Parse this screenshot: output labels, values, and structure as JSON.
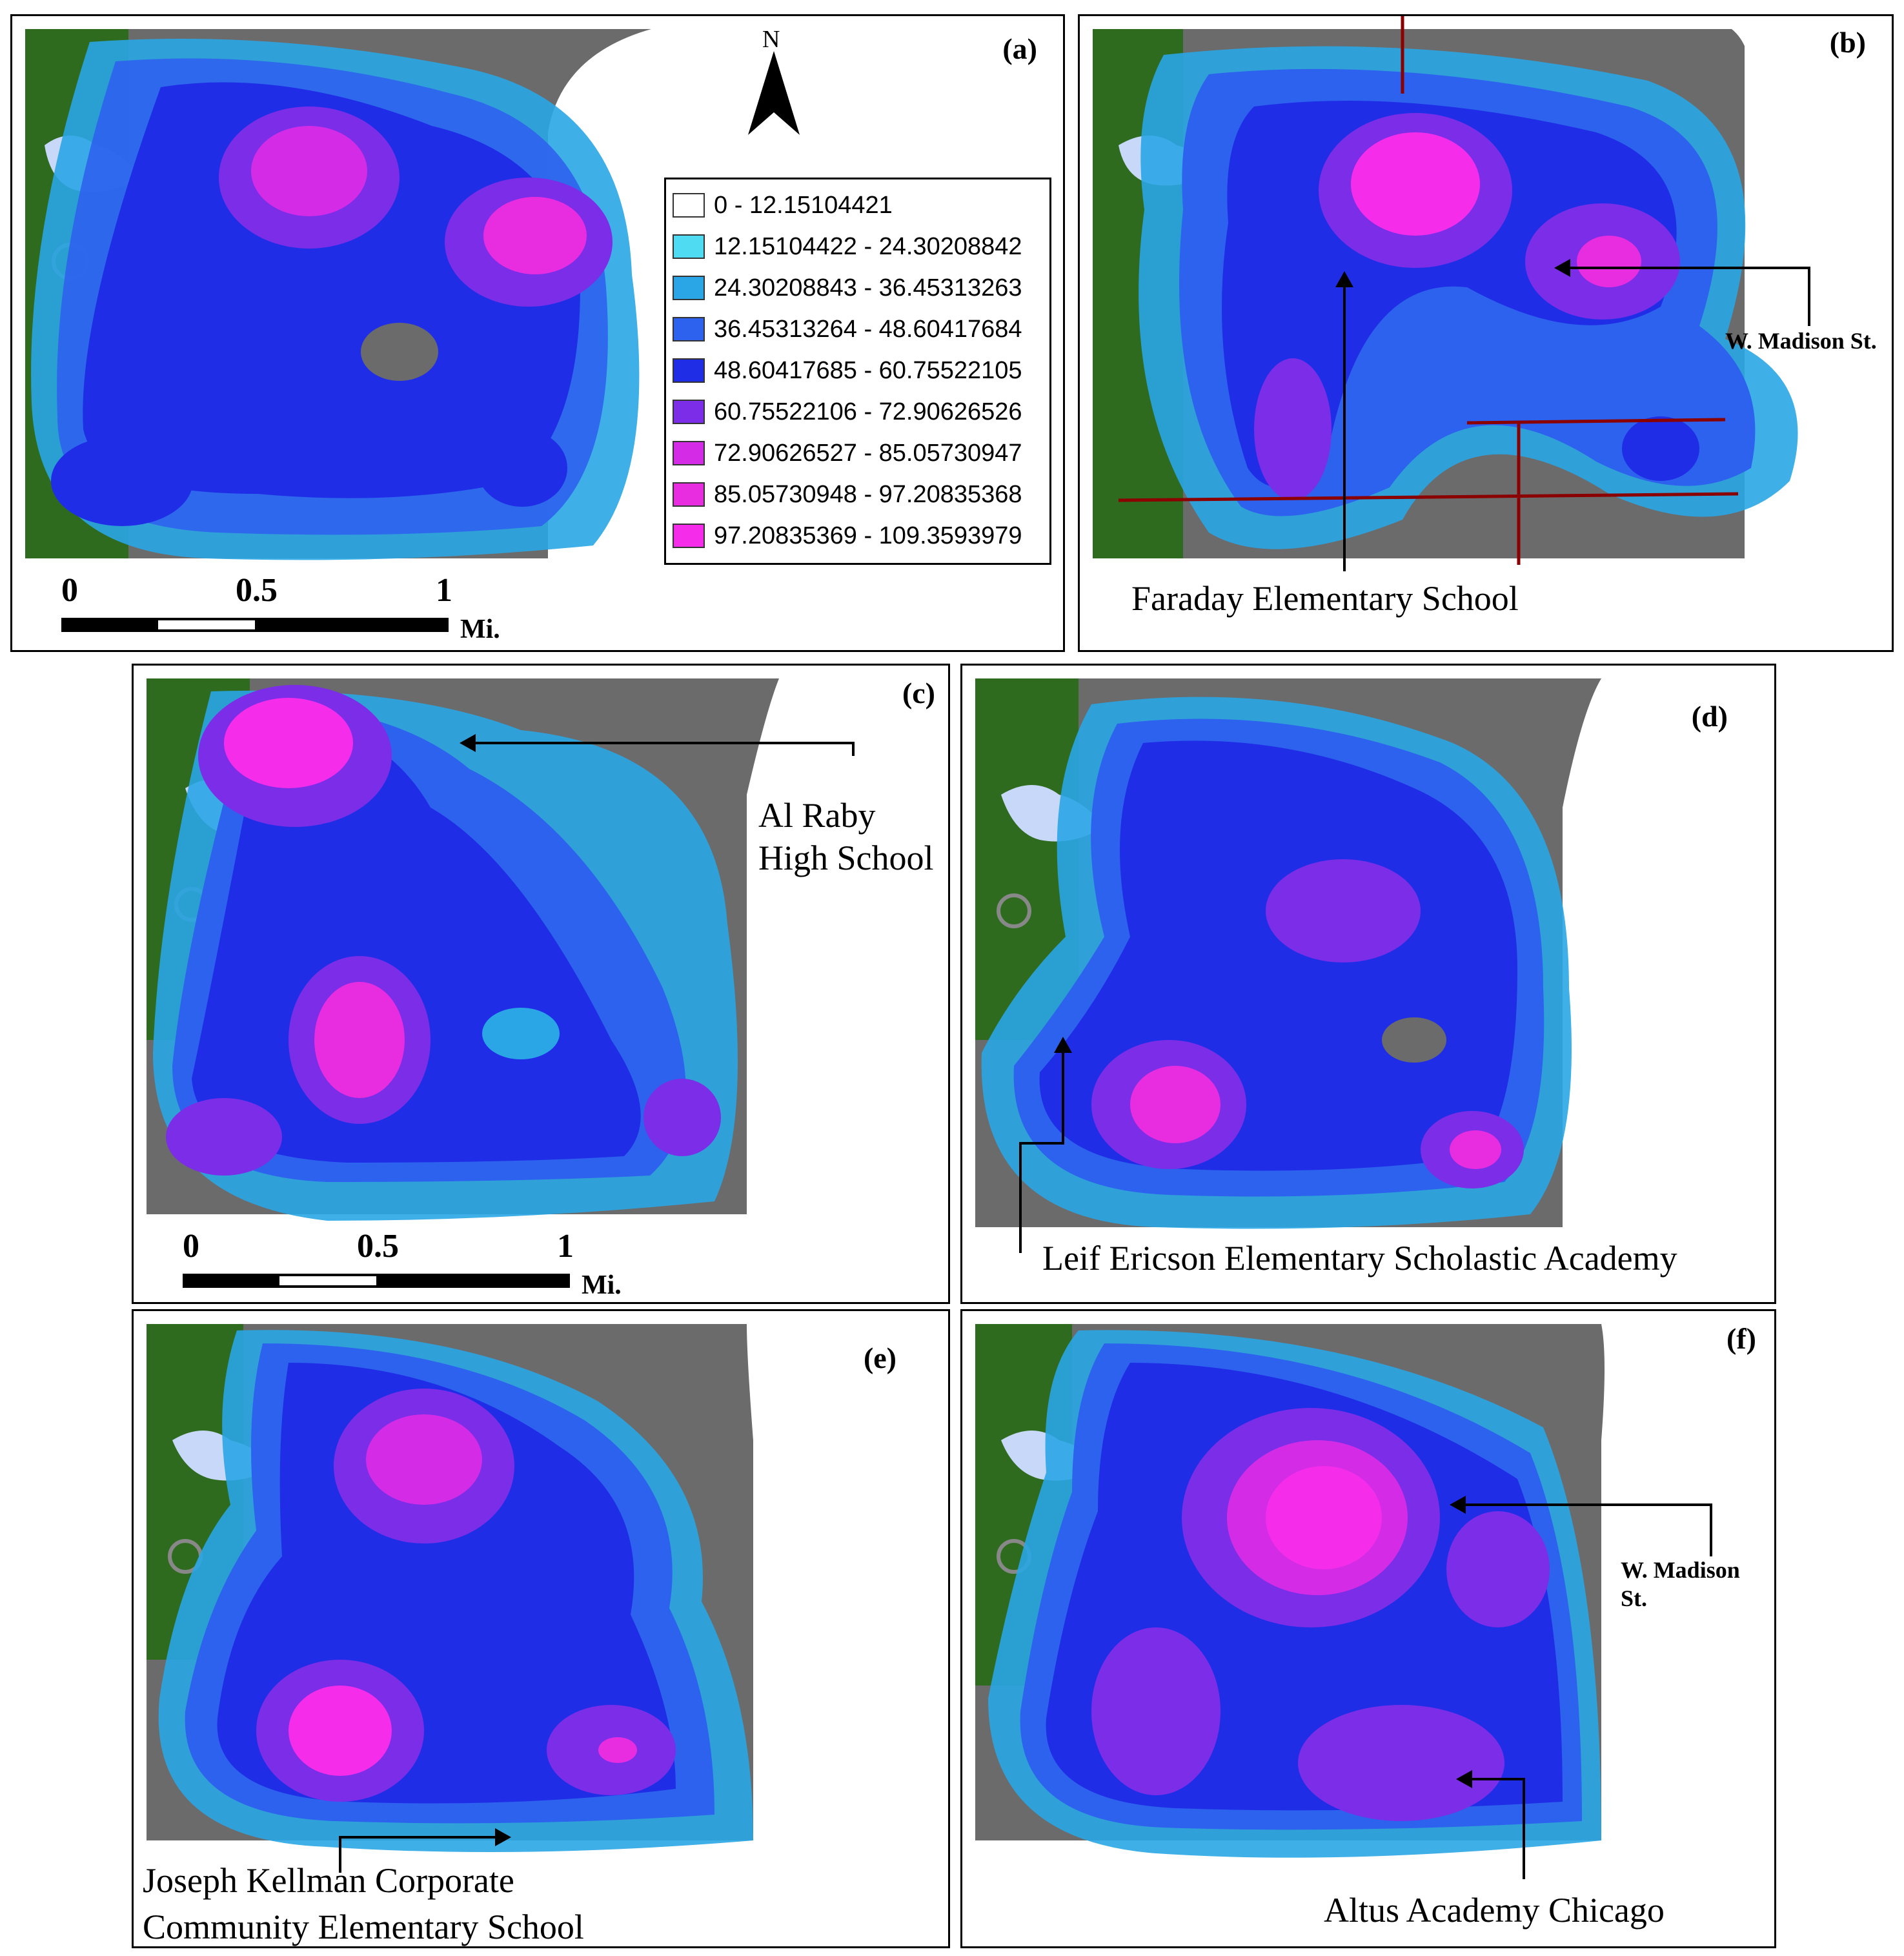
{
  "panels": [
    {
      "id": "a",
      "label": "(a)"
    },
    {
      "id": "b",
      "label": "(b)"
    },
    {
      "id": "c",
      "label": "(c)"
    },
    {
      "id": "d",
      "label": "(d)"
    },
    {
      "id": "e",
      "label": "(e)"
    },
    {
      "id": "f",
      "label": "(f)"
    }
  ],
  "legend": {
    "classes": [
      {
        "label": "0 - 12.15104421",
        "color": "#ffffff"
      },
      {
        "label": "12.15104422 - 24.30208842",
        "color": "#4fdcf2"
      },
      {
        "label": "24.30208843 - 36.45313263",
        "color": "#2aa6e6"
      },
      {
        "label": "36.45313264 - 48.60417684",
        "color": "#2d62ee"
      },
      {
        "label": "48.60417685 - 60.75522105",
        "color": "#1f2ee6"
      },
      {
        "label": "60.75522106 - 72.90626526",
        "color": "#7b2de8"
      },
      {
        "label": "72.90626527 - 85.05730947",
        "color": "#d42ce6"
      },
      {
        "label": "85.05730948 - 97.20835368",
        "color": "#e82ce0"
      },
      {
        "label": "97.20835369 - 109.3593979",
        "color": "#f52cea"
      }
    ]
  },
  "north": {
    "label": "N"
  },
  "scale_bar": {
    "ticks": [
      "0",
      "0.5",
      "1"
    ],
    "unit": "Mi."
  },
  "annotations": {
    "b_school": "Faraday Elementary School",
    "b_street": "W. Madison St.",
    "c_school_line1": "Al Raby",
    "c_school_line2": "High School",
    "d_school": "Leif Ericson Elementary Scholastic Academy",
    "e_school_line1": "Joseph Kellman Corporate",
    "e_school_line2": "Community Elementary School",
    "f_street_line1": "W. Madison",
    "f_street_line2": "St.",
    "f_school": "Altus Academy Chicago"
  },
  "colors": {
    "basemap_gray": "#6b6b6b",
    "park_green": "#2e6b1f",
    "water": "#c8d8f8",
    "road": "#8b0000"
  }
}
